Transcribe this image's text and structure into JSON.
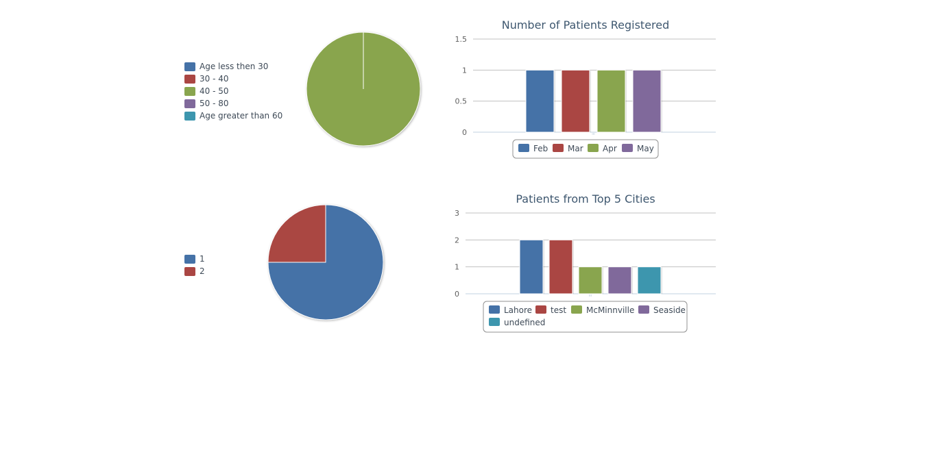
{
  "colors": {
    "blue": "#4572a7",
    "red": "#aa4643",
    "green": "#89a54e",
    "purple": "#80699b",
    "teal": "#3d96ae"
  },
  "chart_data": [
    {
      "type": "pie",
      "title": "",
      "legend_position": "left",
      "slices": [
        {
          "label": "Age less then 30",
          "value": 0,
          "color": "#4572a7"
        },
        {
          "label": "30 - 40",
          "value": 0,
          "color": "#aa4643"
        },
        {
          "label": "40 - 50",
          "value": 1,
          "color": "#89a54e"
        },
        {
          "label": "50 - 80",
          "value": 0,
          "color": "#80699b"
        },
        {
          "label": "Age greater than 60",
          "value": 0,
          "color": "#3d96ae"
        }
      ]
    },
    {
      "type": "bar",
      "title": "Number of Patients Registered",
      "xlabel": "",
      "ylabel": "",
      "ylim": [
        0,
        1.5
      ],
      "yticks": [
        "0",
        "0.5",
        "1",
        "1.5"
      ],
      "ytick_values": [
        0,
        0.5,
        1,
        1.5
      ],
      "grid": true,
      "legend_position": "bottom",
      "series": [
        {
          "name": "Feb",
          "values": [
            1
          ],
          "color": "#4572a7"
        },
        {
          "name": "Mar",
          "values": [
            1
          ],
          "color": "#aa4643"
        },
        {
          "name": "Apr",
          "values": [
            1
          ],
          "color": "#89a54e"
        },
        {
          "name": "May",
          "values": [
            1
          ],
          "color": "#80699b"
        }
      ]
    },
    {
      "type": "pie",
      "title": "",
      "legend_position": "left",
      "slices": [
        {
          "label": "1",
          "value": 3,
          "color": "#4572a7"
        },
        {
          "label": "2",
          "value": 1,
          "color": "#aa4643"
        }
      ]
    },
    {
      "type": "bar",
      "title": "Patients from Top 5 Cities",
      "xlabel": "",
      "ylabel": "",
      "ylim": [
        0,
        3
      ],
      "yticks": [
        "0",
        "1",
        "2",
        "3"
      ],
      "ytick_values": [
        0,
        1,
        2,
        3
      ],
      "grid": true,
      "legend_position": "bottom",
      "series": [
        {
          "name": "Lahore",
          "values": [
            2
          ],
          "color": "#4572a7"
        },
        {
          "name": "test",
          "values": [
            2
          ],
          "color": "#aa4643"
        },
        {
          "name": "McMinnville",
          "values": [
            1
          ],
          "color": "#89a54e"
        },
        {
          "name": "Seaside",
          "values": [
            1
          ],
          "color": "#80699b"
        },
        {
          "name": "undefined",
          "values": [
            1
          ],
          "color": "#3d96ae"
        }
      ]
    }
  ]
}
